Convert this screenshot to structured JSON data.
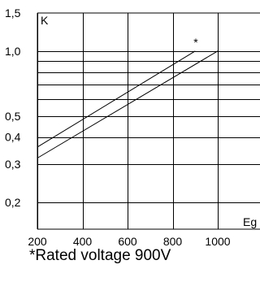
{
  "chart_data": {
    "type": "line",
    "x_scale": "linear",
    "y_scale": "log",
    "xlabel": "Eg",
    "ylabel": "K",
    "xlim": [
      200,
      1000
    ],
    "ylim": [
      0.15,
      1.5
    ],
    "x_ticks": [
      200,
      400,
      600,
      800,
      1000
    ],
    "x_tick_labels": [
      "200",
      "400",
      "600",
      "800",
      "1000"
    ],
    "y_ticks": [
      0.2,
      0.3,
      0.4,
      0.5,
      1.0,
      1.5
    ],
    "y_tick_labels": [
      "0,2",
      "0,3",
      "0,4",
      "0,5",
      "1,0",
      "1,5"
    ],
    "y_gridlines": [
      0.2,
      0.3,
      0.4,
      0.5,
      0.6,
      0.7,
      0.8,
      0.9,
      1.0
    ],
    "x_gridlines": [
      200,
      400,
      600,
      800,
      1000
    ],
    "grid": true,
    "series": [
      {
        "x": [
          200,
          900
        ],
        "y": [
          0.36,
          1.0
        ],
        "marker_label": "*"
      },
      {
        "x": [
          200,
          1000
        ],
        "y": [
          0.32,
          1.0
        ]
      }
    ],
    "annotations": [
      {
        "text": "*",
        "x": 900,
        "y": 1.0
      }
    ]
  },
  "footnote": "*Rated voltage 900V",
  "colors": {
    "line": "#000000",
    "grid": "#000000",
    "background": "#ffffff"
  }
}
